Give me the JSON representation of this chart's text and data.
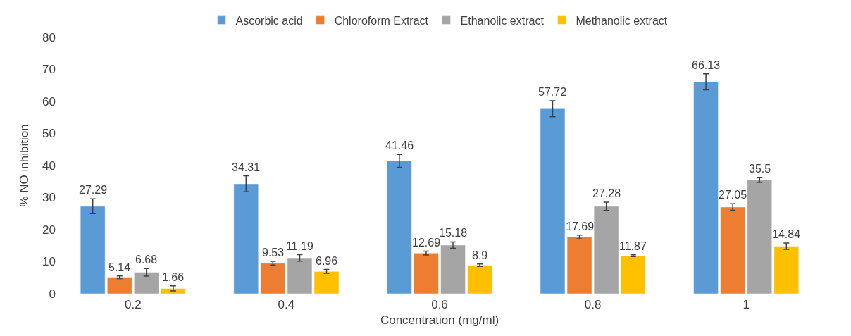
{
  "chart_data": {
    "type": "bar",
    "xlabel": "Concentration (mg/ml)",
    "ylabel": "% NO inhibition",
    "categories": [
      "0.2",
      "0.4",
      "0.6",
      "0.8",
      "1"
    ],
    "series": [
      {
        "name": "Ascorbic acid",
        "color": "#5b9bd5",
        "values": [
          27.29,
          34.31,
          41.46,
          57.72,
          66.13
        ],
        "errors": [
          2.3,
          2.5,
          2,
          2.5,
          2.5
        ]
      },
      {
        "name": "Chloroform Extract",
        "color": "#ed7d31",
        "values": [
          5.14,
          9.53,
          12.69,
          17.69,
          27.05
        ],
        "errors": [
          0.4,
          0.6,
          0.6,
          0.6,
          1
        ]
      },
      {
        "name": "Ethanolic extract",
        "color": "#a5a5a5",
        "values": [
          6.68,
          11.19,
          15.18,
          27.28,
          35.5
        ],
        "errors": [
          1.2,
          1,
          1,
          1.3,
          0.8
        ]
      },
      {
        "name": "Methanolic extract",
        "color": "#ffc000",
        "values": [
          1.66,
          6.96,
          8.9,
          11.87,
          14.84
        ],
        "errors": [
          0.8,
          0.6,
          0.4,
          0.3,
          1
        ]
      }
    ],
    "ylim": [
      0,
      80
    ],
    "yticks": [
      0,
      10,
      20,
      30,
      40,
      50,
      60,
      70,
      80
    ],
    "data_labels": true,
    "grid": false,
    "legend": "top"
  }
}
